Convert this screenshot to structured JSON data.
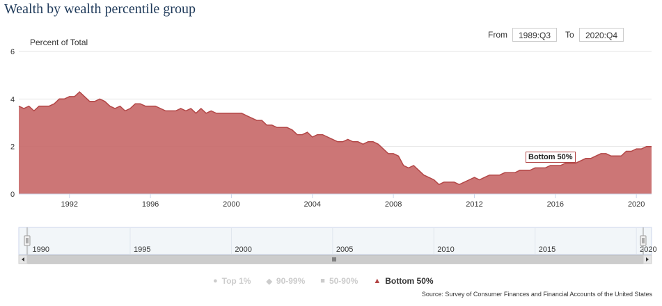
{
  "page": {
    "title": "Wealth by wealth percentile group",
    "range": {
      "from_label": "From",
      "from_value": "1989:Q3",
      "to_label": "To",
      "to_value": "2020:Q4"
    },
    "legend": [
      {
        "label": "Top 1%",
        "symbol": "●",
        "active": false
      },
      {
        "label": "90-99%",
        "symbol": "◆",
        "active": false
      },
      {
        "label": "50-90%",
        "symbol": "■",
        "active": false
      },
      {
        "label": "Bottom 50%",
        "symbol": "▲",
        "active": true
      }
    ],
    "source": "Source: Survey of Consumer Finances and Financial Accounts of the United States",
    "tooltip": "Bottom 50%",
    "navigator_labels": [
      "1990",
      "1995",
      "2000",
      "2005",
      "2010",
      "2015",
      "2020"
    ],
    "colors": {
      "series": "#c86a6a",
      "series_stroke": "#b34747",
      "navigator_bg": "#f2f6f9"
    }
  },
  "chart_data": {
    "type": "area",
    "title": "Wealth by wealth percentile group",
    "ylabel": "Percent of Total",
    "xlim": [
      "1989:Q3",
      "2020:Q4"
    ],
    "ylim": [
      0,
      6
    ],
    "yticks": [
      "0",
      "2",
      "4",
      "6"
    ],
    "xticks": [
      "1992",
      "1996",
      "2000",
      "2004",
      "2008",
      "2012",
      "2016",
      "2020"
    ],
    "legend_position": "bottom",
    "series": [
      {
        "name": "Bottom 50%",
        "x": [
          "1989:Q3",
          "1989:Q4",
          "1990:Q1",
          "1990:Q2",
          "1990:Q3",
          "1990:Q4",
          "1991:Q1",
          "1991:Q2",
          "1991:Q3",
          "1991:Q4",
          "1992:Q1",
          "1992:Q2",
          "1992:Q3",
          "1992:Q4",
          "1993:Q1",
          "1993:Q2",
          "1993:Q3",
          "1993:Q4",
          "1994:Q1",
          "1994:Q2",
          "1994:Q3",
          "1994:Q4",
          "1995:Q1",
          "1995:Q2",
          "1995:Q3",
          "1995:Q4",
          "1996:Q1",
          "1996:Q2",
          "1996:Q3",
          "1996:Q4",
          "1997:Q1",
          "1997:Q2",
          "1997:Q3",
          "1997:Q4",
          "1998:Q1",
          "1998:Q2",
          "1998:Q3",
          "1998:Q4",
          "1999:Q1",
          "1999:Q2",
          "1999:Q3",
          "1999:Q4",
          "2000:Q1",
          "2000:Q2",
          "2000:Q3",
          "2000:Q4",
          "2001:Q1",
          "2001:Q2",
          "2001:Q3",
          "2001:Q4",
          "2002:Q1",
          "2002:Q2",
          "2002:Q3",
          "2002:Q4",
          "2003:Q1",
          "2003:Q2",
          "2003:Q3",
          "2003:Q4",
          "2004:Q1",
          "2004:Q2",
          "2004:Q3",
          "2004:Q4",
          "2005:Q1",
          "2005:Q2",
          "2005:Q3",
          "2005:Q4",
          "2006:Q1",
          "2006:Q2",
          "2006:Q3",
          "2006:Q4",
          "2007:Q1",
          "2007:Q2",
          "2007:Q3",
          "2007:Q4",
          "2008:Q1",
          "2008:Q2",
          "2008:Q3",
          "2008:Q4",
          "2009:Q1",
          "2009:Q2",
          "2009:Q3",
          "2009:Q4",
          "2010:Q1",
          "2010:Q2",
          "2010:Q3",
          "2010:Q4",
          "2011:Q1",
          "2011:Q2",
          "2011:Q3",
          "2011:Q4",
          "2012:Q1",
          "2012:Q2",
          "2012:Q3",
          "2012:Q4",
          "2013:Q1",
          "2013:Q2",
          "2013:Q3",
          "2013:Q4",
          "2014:Q1",
          "2014:Q2",
          "2014:Q3",
          "2014:Q4",
          "2015:Q1",
          "2015:Q2",
          "2015:Q3",
          "2015:Q4",
          "2016:Q1",
          "2016:Q2",
          "2016:Q3",
          "2016:Q4",
          "2017:Q1",
          "2017:Q2",
          "2017:Q3",
          "2017:Q4",
          "2018:Q1",
          "2018:Q2",
          "2018:Q3",
          "2018:Q4",
          "2019:Q1",
          "2019:Q2",
          "2019:Q3",
          "2019:Q4",
          "2020:Q1",
          "2020:Q2",
          "2020:Q3",
          "2020:Q4"
        ],
        "values": [
          3.7,
          3.6,
          3.7,
          3.5,
          3.7,
          3.7,
          3.7,
          3.8,
          4.0,
          4.0,
          4.1,
          4.1,
          4.3,
          4.1,
          3.9,
          3.9,
          4.0,
          3.9,
          3.7,
          3.6,
          3.7,
          3.5,
          3.6,
          3.8,
          3.8,
          3.7,
          3.7,
          3.7,
          3.6,
          3.5,
          3.5,
          3.5,
          3.6,
          3.5,
          3.6,
          3.4,
          3.6,
          3.4,
          3.5,
          3.4,
          3.4,
          3.4,
          3.4,
          3.4,
          3.4,
          3.3,
          3.2,
          3.1,
          3.1,
          2.9,
          2.9,
          2.8,
          2.8,
          2.8,
          2.7,
          2.5,
          2.5,
          2.6,
          2.4,
          2.5,
          2.5,
          2.4,
          2.3,
          2.2,
          2.2,
          2.3,
          2.2,
          2.2,
          2.1,
          2.2,
          2.2,
          2.1,
          1.9,
          1.7,
          1.7,
          1.6,
          1.2,
          1.1,
          1.2,
          1.0,
          0.8,
          0.7,
          0.6,
          0.4,
          0.5,
          0.5,
          0.5,
          0.4,
          0.5,
          0.6,
          0.7,
          0.6,
          0.7,
          0.8,
          0.8,
          0.8,
          0.9,
          0.9,
          0.9,
          1.0,
          1.0,
          1.0,
          1.1,
          1.1,
          1.1,
          1.2,
          1.2,
          1.2,
          1.3,
          1.3,
          1.3,
          1.4,
          1.5,
          1.5,
          1.6,
          1.7,
          1.7,
          1.6,
          1.6,
          1.6,
          1.8,
          1.8,
          1.9,
          1.9,
          2.0,
          2.0
        ]
      }
    ]
  }
}
